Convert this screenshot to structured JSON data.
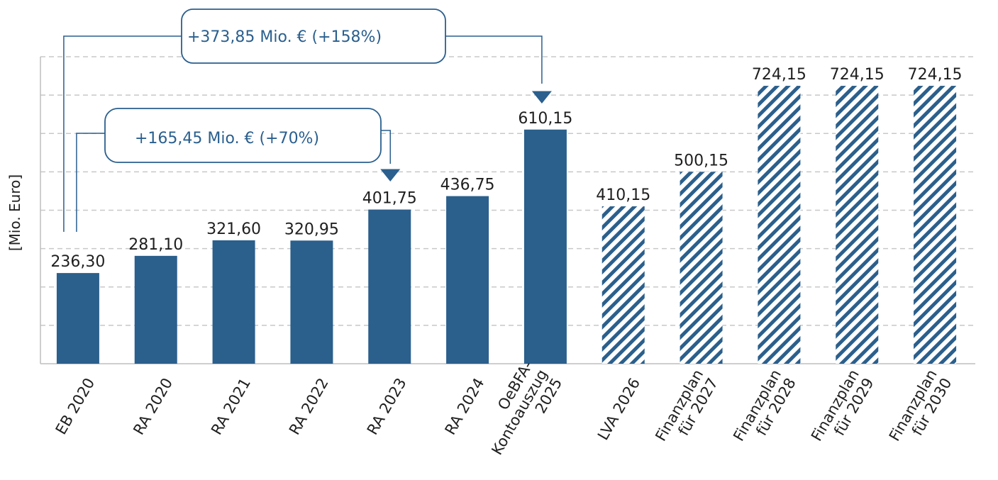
{
  "chart_data": {
    "type": "bar",
    "ylabel": "[Mio.  Euro]",
    "ylim": [
      0,
      800
    ],
    "grid": true,
    "categories": [
      [
        "EB 2020"
      ],
      [
        "RA 2020"
      ],
      [
        "RA 2021"
      ],
      [
        "RA 2022"
      ],
      [
        "RA 2023"
      ],
      [
        "RA 2024"
      ],
      [
        "OeBFA-",
        "Kontoauszug",
        "2025"
      ],
      [
        "LVA 2026"
      ],
      [
        "Finanzplan",
        "für 2027"
      ],
      [
        "Finanzplan",
        "für 2028"
      ],
      [
        "Finanzplan",
        "für 2029"
      ],
      [
        "Finanzplan",
        "für 2030"
      ]
    ],
    "values": [
      236.3,
      281.1,
      321.6,
      320.95,
      401.75,
      436.75,
      610.15,
      410.15,
      500.15,
      724.15,
      724.15,
      724.15
    ],
    "value_labels": [
      "236,30",
      "281,10",
      "321,60",
      "320,95",
      "401,75",
      "436,75",
      "610,15",
      "410,15",
      "500,15",
      "724,15",
      "724,15",
      "724,15"
    ],
    "hatched": [
      false,
      false,
      false,
      false,
      false,
      false,
      false,
      true,
      true,
      true,
      true,
      true
    ],
    "annotations": [
      {
        "text": "+373,85 Mio. € (+158%)",
        "from_index": 0,
        "to_index": 6
      },
      {
        "text": "+165,45 Mio. € (+70%)",
        "from_index": 0,
        "to_index": 4
      }
    ],
    "colors": {
      "bar": "#2b5f8c",
      "grid": "#c8c8c8",
      "annotation": "#2a5f8e"
    }
  }
}
